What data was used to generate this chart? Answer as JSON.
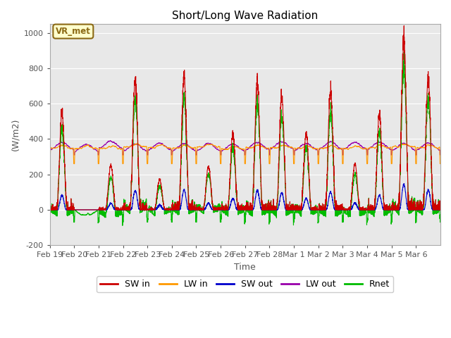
{
  "title": "Short/Long Wave Radiation",
  "xlabel": "Time",
  "ylabel": "(W/m2)",
  "ylim": [
    -200,
    1050
  ],
  "background_color": "#e8e8e8",
  "plot_bg_color": "#e8e8e8",
  "label_color": "#555555",
  "annotation_text": "VR_met",
  "annotation_bg": "#ffffcc",
  "annotation_border": "#8b6914",
  "legend_entries": [
    "SW in",
    "LW in",
    "SW out",
    "LW out",
    "Rnet"
  ],
  "colors": {
    "SW_in": "#cc0000",
    "LW_in": "#ff9900",
    "SW_out": "#0000cc",
    "LW_out": "#9900aa",
    "Rnet": "#00bb00"
  },
  "x_tick_labels": [
    "Feb 19",
    "Feb 20",
    "Feb 21",
    "Feb 22",
    "Feb 23",
    "Feb 24",
    "Feb 25",
    "Feb 26",
    "Feb 27",
    "Feb 28",
    "Mar 1",
    "Mar 2",
    "Mar 3",
    "Mar 4",
    "Mar 5",
    "Mar 6"
  ],
  "yticks": [
    -200,
    0,
    200,
    400,
    600,
    800,
    1000
  ],
  "num_points": 3840,
  "figsize": [
    6.4,
    4.8
  ],
  "dpi": 100
}
